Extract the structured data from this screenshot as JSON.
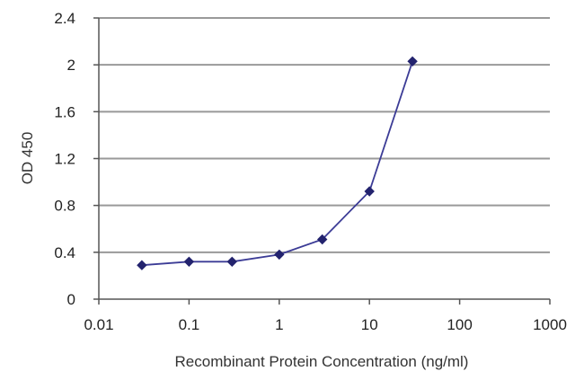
{
  "chart_data": {
    "type": "line",
    "title": "",
    "xlabel": "Recombinant Protein Concentration (ng/ml)",
    "ylabel": "OD 450",
    "x_scale": "log",
    "xlim": [
      0.01,
      1000
    ],
    "ylim": [
      0,
      2.4
    ],
    "x_ticks": [
      0.01,
      0.1,
      1,
      10,
      100,
      1000
    ],
    "x_tick_labels": [
      "0.01",
      "0.1",
      "1",
      "10",
      "100",
      "1000"
    ],
    "y_ticks": [
      0,
      0.4,
      0.8,
      1.2,
      1.6,
      2,
      2.4
    ],
    "y_tick_labels": [
      "0",
      "0.4",
      "0.8",
      "1.2",
      "1.6",
      "2",
      "2.4"
    ],
    "grid": "horizontal",
    "series": [
      {
        "color": "#3c3c96",
        "marker": "diamond",
        "x": [
          0.03,
          0.1,
          0.3,
          1,
          3,
          10,
          30
        ],
        "y": [
          0.29,
          0.32,
          0.32,
          0.38,
          0.51,
          0.92,
          2.03
        ]
      }
    ],
    "colors": {
      "gridline": "#999999",
      "axis": "#555555",
      "line": "#3c3c96",
      "marker": "#23236e"
    }
  }
}
